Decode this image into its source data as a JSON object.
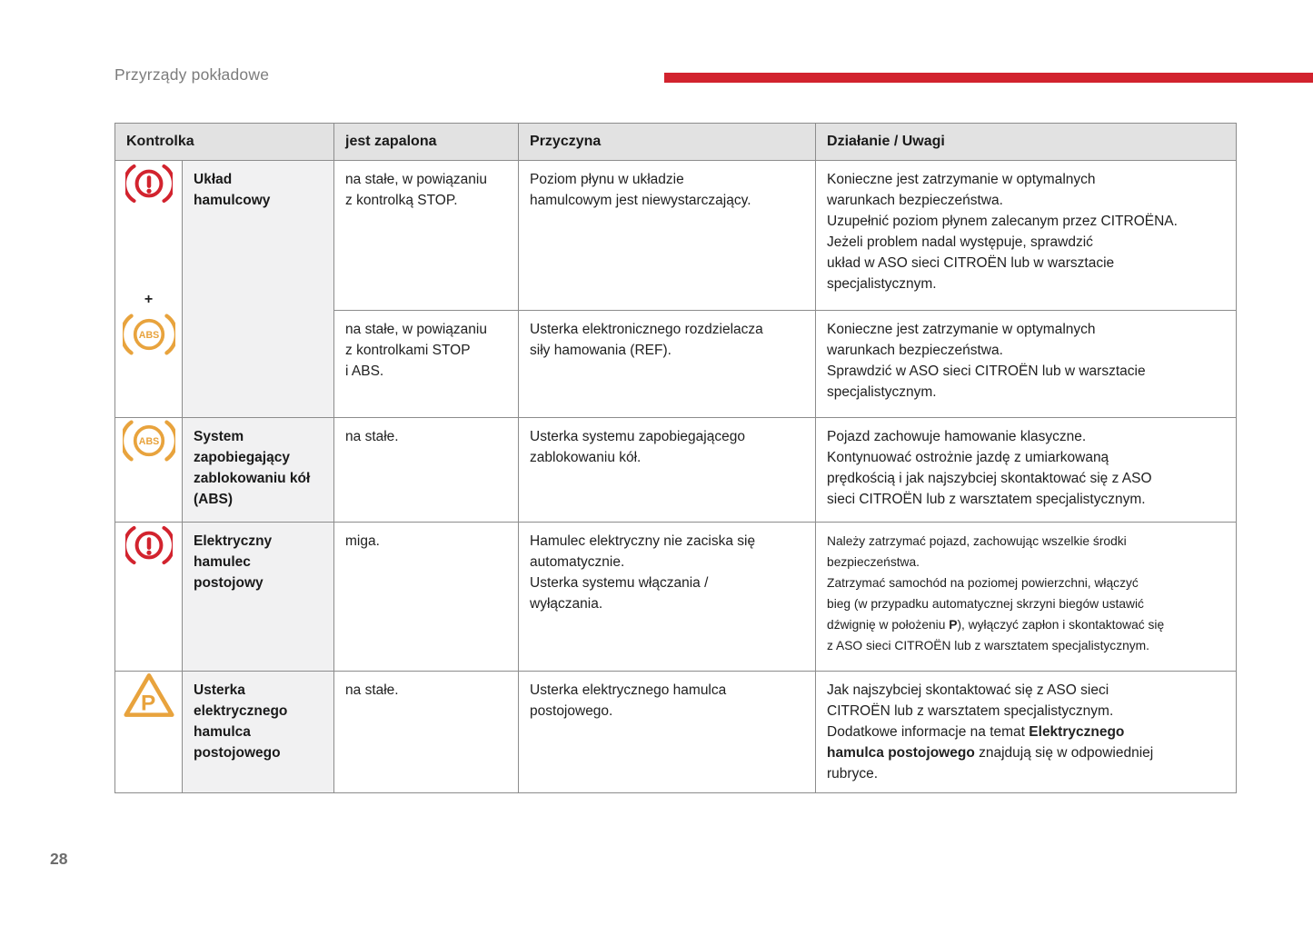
{
  "page": {
    "header_title": "Przyrządy pokładowe",
    "page_number": "28"
  },
  "colors": {
    "accent_red": "#d2232e",
    "warning_amber": "#e8a33d",
    "border_gray": "#8c8c8c",
    "header_bg": "#e2e2e2",
    "label_bg": "#f1f1f2",
    "title_gray": "#7c7c7c",
    "pagenum_gray": "#6d6d6d"
  },
  "icons": {
    "brake_warning": "red circle with exclamation mark flanked by arcs",
    "abs_warning": "amber circle with ABS text flanked by arcs",
    "parking_brake_fault": "amber triangle with letter P",
    "plus_sign": "+",
    "abs_text": "ABS",
    "triangle_letter": "P"
  },
  "table": {
    "headers": {
      "kontrolka": "Kontrolka",
      "state": "jest zapalona",
      "cause": "Przyczyna",
      "action": "Działanie / Uwagi"
    },
    "rows": [
      {
        "label": "Układ\nhamulcowy",
        "sub": [
          {
            "state": "na stałe, w powiązaniu\nz kontrolką STOP.",
            "cause": "Poziom płynu w układzie\nhamulcowym jest niewystarczający.",
            "action": "Konieczne jest zatrzymanie w optymalnych\nwarunkach bezpieczeństwa.\nUzupełnić poziom płynem zalecanym przez CITROËNA.\nJeżeli problem nadal występuje, sprawdzić\nukład w ASO sieci CITROËN lub w warsztacie\nspecjalistycznym."
          },
          {
            "state": "na stałe, w powiązaniu\nz kontrolkami STOP\ni ABS.",
            "cause": "Usterka elektronicznego rozdzielacza\nsiły hamowania (REF).",
            "action": "Konieczne jest zatrzymanie w optymalnych\nwarunkach bezpieczeństwa.\nSprawdzić w ASO sieci CITROËN lub w warsztacie\nspecjalistycznym."
          }
        ]
      },
      {
        "label": "System\nzapobiegający\nzablokowaniu kół\n(ABS)",
        "state": "na stałe.",
        "cause": "Usterka systemu zapobiegającego\nzablokowaniu kół.",
        "action": "Pojazd zachowuje hamowanie klasyczne.\nKontynuować ostrożnie jazdę z umiarkowaną\nprędkością i jak najszybciej skontaktować się z ASO\nsieci CITROËN lub z warsztatem specjalistycznym."
      },
      {
        "label": "Elektryczny\nhamulec\npostojowy",
        "state": "miga.",
        "cause": "Hamulec elektryczny nie zaciska się\nautomatycznie.\nUsterka systemu włączania /\nwyłączania.",
        "action": "Należy zatrzymać pojazd, zachowując wszelkie środki\nbezpieczeństwa.\nZatrzymać samochód na poziomej powierzchni, włączyć\nbieg (w przypadku automatycznej skrzyni biegów ustawić\ndźwignię w położeniu **P**), wyłączyć zapłon i skontaktować się\nz ASO sieci CITROËN lub z warsztatem specjalistycznym."
      },
      {
        "label": "Usterka\nelektrycznego\nhamulca\npostojowego",
        "state": "na stałe.",
        "cause": "Usterka elektrycznego hamulca\npostojowego.",
        "action": "Jak najszybciej skontaktować się z ASO sieci\nCITROËN lub z warsztatem specjalistycznym.\nDodatkowe informacje na temat **Elektrycznego\nhamulca postojowego** znajdują się w odpowiedniej\nrubryce."
      }
    ]
  }
}
